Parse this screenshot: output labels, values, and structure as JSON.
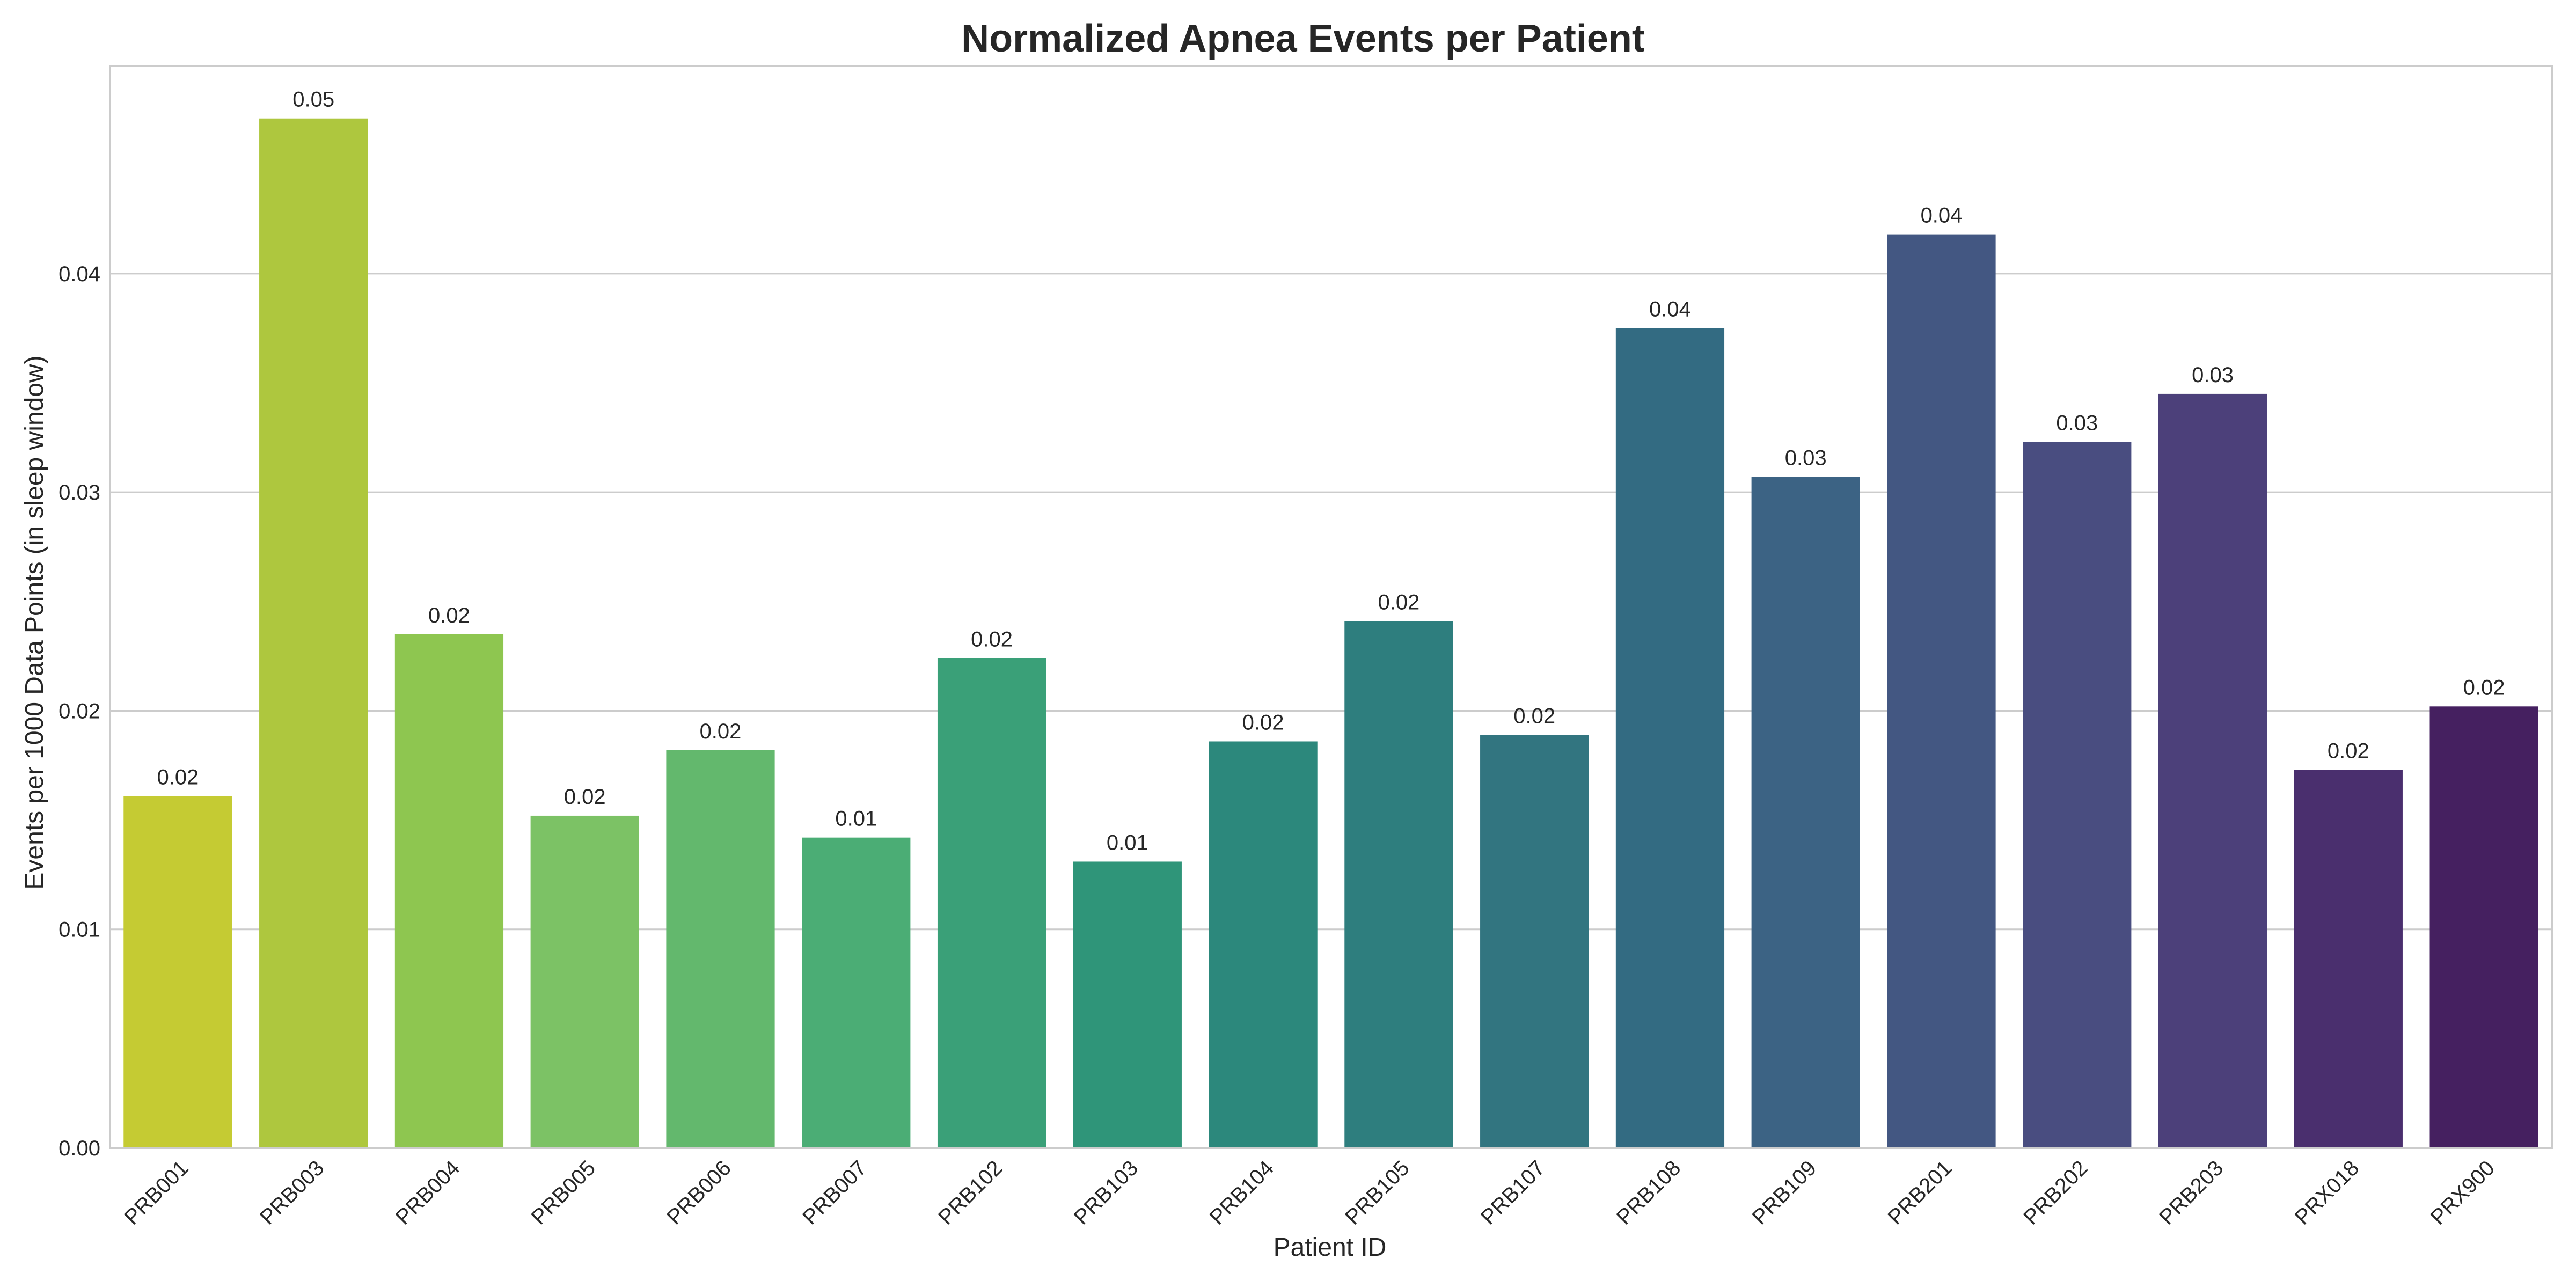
{
  "chart_data": {
    "type": "bar",
    "title": "Normalized Apnea Events per Patient",
    "xlabel": "Patient ID",
    "ylabel": "Events per 1000 Data Points (in sleep window)",
    "ylim": [
      0,
      0.0495
    ],
    "yticks": [
      0.0,
      0.01,
      0.02,
      0.03,
      0.04
    ],
    "ytick_labels": [
      "0.00",
      "0.01",
      "0.02",
      "0.03",
      "0.04"
    ],
    "grid": true,
    "categories": [
      "PRB001",
      "PRB003",
      "PRB004",
      "PRB005",
      "PRB006",
      "PRB007",
      "PRB102",
      "PRB103",
      "PRB104",
      "PRB105",
      "PRB107",
      "PRB108",
      "PRB109",
      "PRB201",
      "PRB202",
      "PRB203",
      "PRX018",
      "PRX900"
    ],
    "values": [
      0.0161,
      0.0471,
      0.0235,
      0.0152,
      0.0182,
      0.0142,
      0.0224,
      0.0131,
      0.0186,
      0.0241,
      0.0189,
      0.0375,
      0.0307,
      0.0418,
      0.0323,
      0.0345,
      0.0173,
      0.0202
    ],
    "data_labels": [
      "0.02",
      "0.05",
      "0.02",
      "0.02",
      "0.02",
      "0.01",
      "0.02",
      "0.01",
      "0.02",
      "0.02",
      "0.02",
      "0.04",
      "0.03",
      "0.04",
      "0.03",
      "0.03",
      "0.02",
      "0.02"
    ],
    "colors": [
      "#c5cb33",
      "#aec73e",
      "#8ec650",
      "#7cc265",
      "#63b86d",
      "#4bad75",
      "#3aa078",
      "#2f9579",
      "#2c887c",
      "#2e7e7e",
      "#327580",
      "#336b82",
      "#3c6384",
      "#435782",
      "#494d80",
      "#4c407a",
      "#4a2f6e",
      "#452060"
    ]
  }
}
